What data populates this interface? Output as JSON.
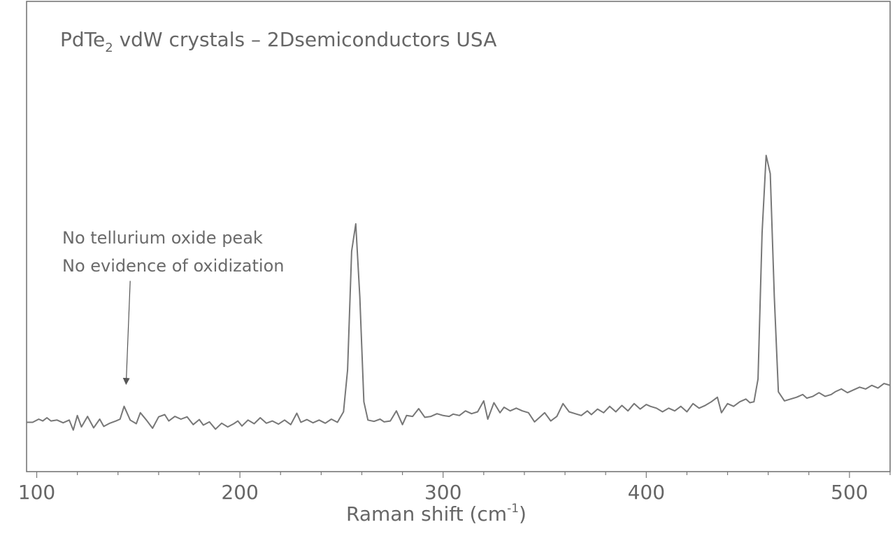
{
  "chart_data": {
    "type": "line",
    "title": {
      "main": "PdTe",
      "subscript": "2",
      "rest": " vdW crystals – 2Dsemiconductors USA"
    },
    "xlabel": {
      "main": "Raman shift (cm",
      "superscript": "-1",
      "close": ")"
    },
    "ylabel": "",
    "xlim": [
      95,
      520
    ],
    "ylim": [
      0,
      1
    ],
    "x_ticks": [
      100,
      200,
      300,
      400,
      500
    ],
    "x_minor_step": 20,
    "grid": false,
    "annotation": {
      "lines": [
        "No tellurium oxide peak",
        "No evidence of oxidization"
      ],
      "arrow_from": [
        146,
        0.415
      ],
      "arrow_to": [
        144,
        0.19
      ]
    },
    "series": [
      {
        "color": "#777777",
        "points": [
          [
            95,
            0.105
          ],
          [
            98,
            0.105
          ],
          [
            101,
            0.112
          ],
          [
            103,
            0.108
          ],
          [
            105,
            0.115
          ],
          [
            107,
            0.108
          ],
          [
            110,
            0.11
          ],
          [
            113,
            0.104
          ],
          [
            116,
            0.11
          ],
          [
            118,
            0.088
          ],
          [
            120,
            0.12
          ],
          [
            122,
            0.095
          ],
          [
            125,
            0.118
          ],
          [
            128,
            0.093
          ],
          [
            131,
            0.112
          ],
          [
            133,
            0.096
          ],
          [
            136,
            0.103
          ],
          [
            139,
            0.108
          ],
          [
            141,
            0.112
          ],
          [
            143,
            0.14
          ],
          [
            146,
            0.11
          ],
          [
            149,
            0.102
          ],
          [
            151,
            0.126
          ],
          [
            154,
            0.11
          ],
          [
            157,
            0.092
          ],
          [
            160,
            0.117
          ],
          [
            163,
            0.122
          ],
          [
            165,
            0.108
          ],
          [
            168,
            0.118
          ],
          [
            171,
            0.112
          ],
          [
            174,
            0.117
          ],
          [
            177,
            0.1
          ],
          [
            180,
            0.111
          ],
          [
            182,
            0.099
          ],
          [
            185,
            0.106
          ],
          [
            188,
            0.09
          ],
          [
            191,
            0.103
          ],
          [
            194,
            0.095
          ],
          [
            197,
            0.102
          ],
          [
            199,
            0.108
          ],
          [
            201,
            0.097
          ],
          [
            204,
            0.11
          ],
          [
            207,
            0.102
          ],
          [
            210,
            0.115
          ],
          [
            213,
            0.103
          ],
          [
            216,
            0.108
          ],
          [
            219,
            0.101
          ],
          [
            222,
            0.11
          ],
          [
            225,
            0.1
          ],
          [
            228,
            0.125
          ],
          [
            230,
            0.105
          ],
          [
            233,
            0.111
          ],
          [
            236,
            0.104
          ],
          [
            239,
            0.11
          ],
          [
            242,
            0.103
          ],
          [
            245,
            0.112
          ],
          [
            248,
            0.105
          ],
          [
            251,
            0.128
          ],
          [
            253,
            0.22
          ],
          [
            255,
            0.48
          ],
          [
            257,
            0.54
          ],
          [
            259,
            0.38
          ],
          [
            261,
            0.15
          ],
          [
            263,
            0.11
          ],
          [
            266,
            0.107
          ],
          [
            269,
            0.112
          ],
          [
            271,
            0.106
          ],
          [
            274,
            0.108
          ],
          [
            277,
            0.13
          ],
          [
            280,
            0.1
          ],
          [
            282,
            0.12
          ],
          [
            285,
            0.118
          ],
          [
            288,
            0.135
          ],
          [
            291,
            0.116
          ],
          [
            294,
            0.118
          ],
          [
            297,
            0.124
          ],
          [
            300,
            0.12
          ],
          [
            303,
            0.118
          ],
          [
            305,
            0.123
          ],
          [
            308,
            0.12
          ],
          [
            311,
            0.13
          ],
          [
            314,
            0.124
          ],
          [
            317,
            0.128
          ],
          [
            320,
            0.152
          ],
          [
            322,
            0.112
          ],
          [
            325,
            0.148
          ],
          [
            328,
            0.126
          ],
          [
            330,
            0.138
          ],
          [
            333,
            0.13
          ],
          [
            336,
            0.136
          ],
          [
            339,
            0.13
          ],
          [
            342,
            0.126
          ],
          [
            345,
            0.106
          ],
          [
            348,
            0.118
          ],
          [
            350,
            0.126
          ],
          [
            353,
            0.108
          ],
          [
            356,
            0.118
          ],
          [
            359,
            0.146
          ],
          [
            362,
            0.128
          ],
          [
            365,
            0.124
          ],
          [
            368,
            0.12
          ],
          [
            371,
            0.13
          ],
          [
            373,
            0.122
          ],
          [
            376,
            0.134
          ],
          [
            379,
            0.126
          ],
          [
            382,
            0.14
          ],
          [
            385,
            0.128
          ],
          [
            388,
            0.142
          ],
          [
            391,
            0.13
          ],
          [
            394,
            0.146
          ],
          [
            397,
            0.134
          ],
          [
            400,
            0.144
          ],
          [
            402,
            0.14
          ],
          [
            405,
            0.136
          ],
          [
            408,
            0.128
          ],
          [
            411,
            0.136
          ],
          [
            414,
            0.13
          ],
          [
            417,
            0.14
          ],
          [
            420,
            0.128
          ],
          [
            423,
            0.146
          ],
          [
            426,
            0.136
          ],
          [
            429,
            0.142
          ],
          [
            432,
            0.15
          ],
          [
            435,
            0.16
          ],
          [
            437,
            0.126
          ],
          [
            440,
            0.146
          ],
          [
            443,
            0.14
          ],
          [
            446,
            0.15
          ],
          [
            449,
            0.156
          ],
          [
            451,
            0.148
          ],
          [
            453,
            0.15
          ],
          [
            455,
            0.2
          ],
          [
            457,
            0.52
          ],
          [
            459,
            0.69
          ],
          [
            461,
            0.65
          ],
          [
            463,
            0.38
          ],
          [
            465,
            0.172
          ],
          [
            468,
            0.152
          ],
          [
            471,
            0.156
          ],
          [
            474,
            0.16
          ],
          [
            477,
            0.166
          ],
          [
            479,
            0.158
          ],
          [
            482,
            0.162
          ],
          [
            485,
            0.17
          ],
          [
            488,
            0.162
          ],
          [
            491,
            0.166
          ],
          [
            493,
            0.172
          ],
          [
            496,
            0.178
          ],
          [
            499,
            0.17
          ],
          [
            502,
            0.176
          ],
          [
            505,
            0.182
          ],
          [
            508,
            0.178
          ],
          [
            511,
            0.186
          ],
          [
            514,
            0.18
          ],
          [
            517,
            0.19
          ],
          [
            520,
            0.186
          ]
        ]
      }
    ]
  }
}
